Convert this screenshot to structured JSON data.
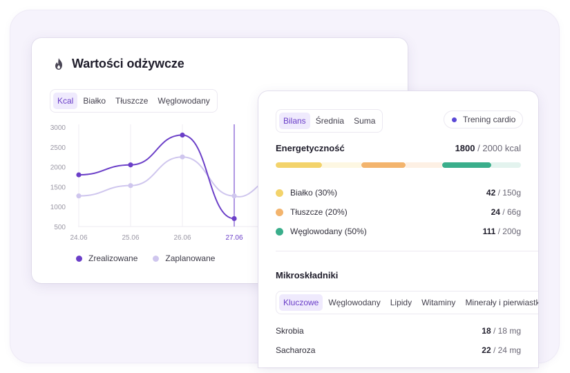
{
  "nutrition_card": {
    "title": "Wartości odżywcze",
    "tabs": [
      "Kcal",
      "Białko",
      "Tłuszcze",
      "Węglowodany"
    ],
    "active_tab": "Kcal"
  },
  "chart_data": {
    "type": "line",
    "x": [
      "24.06",
      "25.06",
      "26.06",
      "27.06"
    ],
    "highlighted_x": "27.06",
    "y_ticks": [
      3000,
      2500,
      2000,
      1500,
      1000,
      500
    ],
    "ylim": [
      500,
      3000
    ],
    "series": [
      {
        "name": "Zrealizowane",
        "color": "#6b3fc8",
        "values": [
          1800,
          2050,
          2800,
          700
        ]
      },
      {
        "name": "Zaplanowane",
        "color": "#cfc6ee",
        "values": [
          1270,
          1530,
          2250,
          1270
        ]
      }
    ],
    "legend_position": "bottom-left",
    "grid": true
  },
  "legend": {
    "realized": "Zrealizowane",
    "planned": "Zaplanowane"
  },
  "balance_card": {
    "tabs": [
      "Bilans",
      "Średnia",
      "Suma"
    ],
    "active_tab": "Bilans",
    "training_pill": "Trening cardio",
    "energy": {
      "label": "Energetyczność",
      "value": "1800",
      "target": "/ 2000 kcal"
    },
    "energy_bar": [
      {
        "color": "#f3d36b",
        "fraction": 0.19
      },
      {
        "color": "#fdf7e2",
        "fraction": 0.16
      },
      {
        "color": "#f3b46d",
        "fraction": 0.18
      },
      {
        "color": "#fdf0e4",
        "fraction": 0.15
      },
      {
        "color": "#3aae8b",
        "fraction": 0.2
      },
      {
        "color": "#e3f3ee",
        "fraction": 0.12
      }
    ],
    "macros": [
      {
        "label": "Białko (30%)",
        "value": "42",
        "target": "/ 150g",
        "color": "#f3d36b"
      },
      {
        "label": "Tłuszcze (20%)",
        "value": "24",
        "target": "/ 66g",
        "color": "#f3b46d"
      },
      {
        "label": "Węglowodany (50%)",
        "value": "111",
        "target": "/ 200g",
        "color": "#3aae8b"
      }
    ],
    "micro_title": "Mikroskładniki",
    "micro_tabs": [
      "Kluczowe",
      "Węglowodany",
      "Lipidy",
      "Witaminy",
      "Minerały i pierwiastki"
    ],
    "micro_active_tab": "Kluczowe",
    "micros": [
      {
        "name": "Skrobia",
        "value": "18",
        "target": "/ 18 mg"
      },
      {
        "name": "Sacharoza",
        "value": "22",
        "target": "/ 24 mg"
      }
    ]
  },
  "icons": {
    "title_icon": "flame-icon"
  }
}
